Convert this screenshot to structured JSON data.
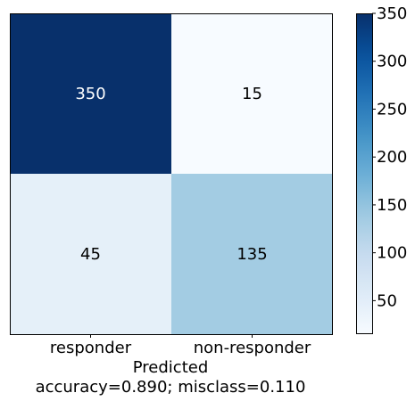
{
  "chart_data": {
    "type": "heatmap",
    "title": "",
    "xlabel": "Predicted",
    "ylabel": "",
    "x_categories": [
      "responder",
      "non-responder"
    ],
    "y_categories": [
      "",
      ""
    ],
    "values": [
      [
        350,
        15
      ],
      [
        45,
        135
      ]
    ],
    "cell_labels": [
      [
        "350",
        "15"
      ],
      [
        "45",
        "135"
      ]
    ],
    "caption": "accuracy=0.890; misclass=0.110",
    "colormap": "Blues",
    "color_range": [
      15,
      350
    ],
    "colorbar_ticks": [
      50,
      100,
      150,
      200,
      250,
      300,
      350
    ],
    "grid": false
  }
}
